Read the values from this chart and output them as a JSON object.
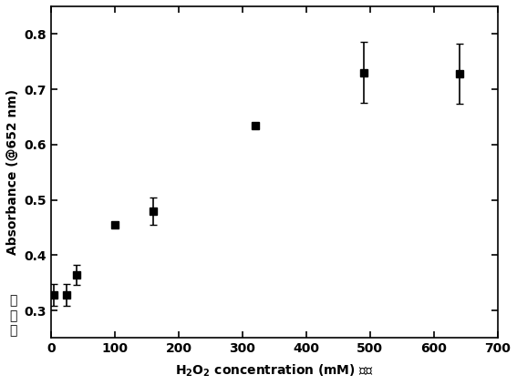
{
  "x": [
    5,
    25,
    40,
    100,
    160,
    320,
    490,
    640
  ],
  "y": [
    0.328,
    0.328,
    0.365,
    0.455,
    0.48,
    0.635,
    0.73,
    0.728
  ],
  "yerr": [
    0.02,
    0.02,
    0.018,
    0.005,
    0.025,
    0.003,
    0.055,
    0.055
  ],
  "ylabel_en": "Absorbance (@652 nm)",
  "ylabel_cn": "吸\n光\n度",
  "xlabel": "H$_2$O$_2$ concentration (mM) 浓度",
  "xlim": [
    0,
    700
  ],
  "ylim": [
    0.25,
    0.85
  ],
  "xticks": [
    0,
    100,
    200,
    300,
    400,
    500,
    600,
    700
  ],
  "yticks": [
    0.3,
    0.4,
    0.5,
    0.6,
    0.7,
    0.8
  ],
  "marker": "s",
  "marker_size": 6,
  "marker_color": "black",
  "ecolor": "black",
  "capsize": 3,
  "elinewidth": 1.2,
  "background_color": "#ffffff",
  "figsize": [
    5.67,
    4.23
  ],
  "dpi": 100
}
